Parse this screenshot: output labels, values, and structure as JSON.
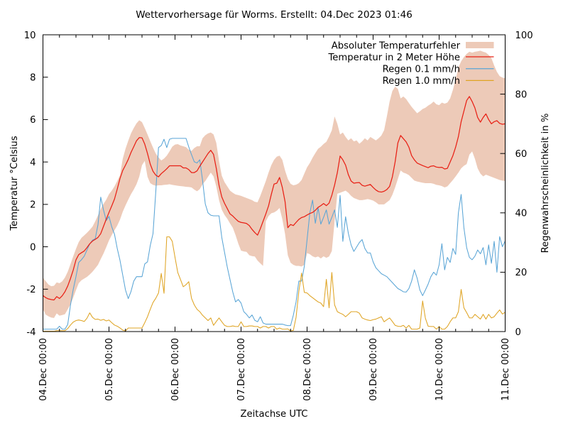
{
  "title": "Wettervorhersage für Worms. Erstellt: 04.Dec 2023 01:46",
  "axes": {
    "x_label": "Zeitachse UTC",
    "y_left_label": "Temperatur °Celsius",
    "y_right_label": "Regenwahrscheinlichkeit in %",
    "x_tick_labels": [
      "04.Dec 00:00",
      "05.Dec 00:00",
      "06.Dec 00:00",
      "07.Dec 00:00",
      "08.Dec 00:00",
      "09.Dec 00:00",
      "10.Dec 00:00",
      "11.Dec 00:00"
    ],
    "y_left_ticks": [
      10,
      8,
      6,
      4,
      2,
      0,
      -2,
      -4
    ],
    "y_right_ticks": [
      100,
      80,
      60,
      40,
      20,
      0
    ],
    "y_left_range": [
      -4,
      10
    ],
    "y_right_range": [
      0,
      100
    ],
    "x_hours": 168,
    "minor_tick_hours": 6
  },
  "legend": [
    {
      "label": "Absoluter Temperaturfehler",
      "type": "band"
    },
    {
      "label": "Temperatur in 2 Meter Höhe",
      "type": "line",
      "series": "temperature"
    },
    {
      "label": "Regen 0.1 mm/h",
      "type": "line",
      "series": "rain01"
    },
    {
      "label": "Regen 1.0 mm/h",
      "type": "line",
      "series": "rain10"
    }
  ],
  "colors": {
    "temperature": "#e82015",
    "band": "#edcab8",
    "rain01": "#5aa5d6",
    "rain10": "#dfa424",
    "axis": "#000000",
    "text": "#000000",
    "background": "#ffffff"
  },
  "chart_data": {
    "type": "line",
    "title": "Wettervorhersage für Worms. Erstellt: 04.Dec 2023 01:46",
    "xlabel": "Zeitachse UTC",
    "ylabel_left": "Temperatur °Celsius",
    "ylabel_right": "Regenwahrscheinlichkeit in %",
    "x_unit": "hours since 04.Dec 2023 00:00 UTC",
    "x": [
      0,
      1,
      2,
      3,
      4,
      5,
      6,
      7,
      8,
      9,
      10,
      11,
      12,
      13,
      14,
      15,
      16,
      17,
      18,
      19,
      20,
      21,
      22,
      23,
      24,
      25,
      26,
      27,
      28,
      29,
      30,
      31,
      32,
      33,
      34,
      35,
      36,
      37,
      38,
      39,
      40,
      41,
      42,
      43,
      44,
      45,
      46,
      47,
      48,
      49,
      50,
      51,
      52,
      53,
      54,
      55,
      56,
      57,
      58,
      59,
      60,
      61,
      62,
      63,
      64,
      65,
      66,
      67,
      68,
      69,
      70,
      71,
      72,
      73,
      74,
      75,
      76,
      77,
      78,
      79,
      80,
      81,
      82,
      83,
      84,
      85,
      86,
      87,
      88,
      89,
      90,
      91,
      92,
      93,
      94,
      95,
      96,
      97,
      98,
      99,
      100,
      101,
      102,
      103,
      104,
      105,
      106,
      107,
      108,
      109,
      110,
      111,
      112,
      113,
      114,
      115,
      116,
      117,
      118,
      119,
      120,
      121,
      122,
      123,
      124,
      125,
      126,
      127,
      128,
      129,
      130,
      131,
      132,
      133,
      134,
      135,
      136,
      137,
      138,
      139,
      140,
      141,
      142,
      143,
      144,
      145,
      146,
      147,
      148,
      149,
      150,
      151,
      152,
      153,
      154,
      155,
      156,
      157,
      158,
      159,
      160,
      161,
      162,
      163,
      164,
      165,
      166,
      167,
      168
    ],
    "ylim_left": [
      -4,
      10
    ],
    "ylim_right": [
      0,
      100
    ],
    "series": [
      {
        "name": "Absoluter Temperaturfehler (oberer Rand)",
        "axis": "left",
        "values": [
          -1.46,
          -1.62,
          -1.78,
          -1.86,
          -1.84,
          -1.68,
          -1.72,
          -1.63,
          -1.45,
          -1.18,
          -0.82,
          -0.45,
          -0.1,
          0.22,
          0.42,
          0.54,
          0.66,
          0.8,
          0.95,
          1.2,
          1.48,
          1.78,
          2.02,
          2.22,
          2.48,
          2.65,
          2.85,
          3.1,
          3.38,
          4.15,
          4.62,
          5.0,
          5.35,
          5.6,
          5.82,
          5.97,
          5.88,
          5.6,
          5.3,
          4.98,
          4.68,
          4.4,
          4.22,
          4.07,
          4.16,
          4.3,
          4.5,
          4.72,
          4.82,
          4.84,
          4.78,
          4.74,
          4.7,
          4.58,
          4.52,
          4.66,
          4.74,
          4.74,
          5.12,
          5.26,
          5.35,
          5.39,
          5.3,
          4.9,
          4.05,
          3.35,
          3.05,
          2.85,
          2.65,
          2.55,
          2.47,
          2.44,
          2.4,
          2.35,
          2.3,
          2.25,
          2.2,
          2.12,
          2.1,
          2.4,
          2.75,
          3.1,
          3.5,
          3.85,
          4.1,
          4.25,
          4.3,
          4.1,
          3.6,
          3.2,
          2.97,
          2.9,
          2.93,
          3.0,
          3.15,
          3.45,
          3.75,
          3.95,
          4.2,
          4.42,
          4.62,
          4.72,
          4.85,
          4.95,
          5.2,
          5.5,
          6.15,
          5.8,
          5.3,
          5.39,
          5.18,
          5.02,
          5.12,
          4.97,
          5.02,
          4.86,
          4.97,
          5.12,
          5.02,
          5.18,
          5.1,
          5.02,
          5.12,
          5.25,
          5.5,
          6.15,
          6.85,
          7.35,
          7.55,
          7.45,
          7.0,
          7.09,
          6.97,
          6.78,
          6.6,
          6.45,
          6.3,
          6.39,
          6.5,
          6.56,
          6.66,
          6.74,
          6.85,
          6.72,
          6.68,
          6.8,
          6.75,
          6.8,
          7.0,
          7.4,
          7.9,
          8.45,
          8.75,
          8.95,
          9.1,
          9.2,
          9.16,
          9.2,
          9.22,
          9.25,
          9.2,
          9.16,
          9.05,
          8.9,
          8.55,
          8.25,
          8.05,
          7.98,
          7.95
        ]
      },
      {
        "name": "Absoluter Temperaturfehler (unterer Rand)",
        "axis": "left",
        "values": [
          -2.95,
          -3.2,
          -3.28,
          -3.34,
          -3.36,
          -3.14,
          -3.25,
          -3.22,
          -3.18,
          -2.95,
          -2.72,
          -2.4,
          -2.05,
          -1.72,
          -1.58,
          -1.5,
          -1.42,
          -1.31,
          -1.18,
          -1.02,
          -0.85,
          -0.58,
          -0.32,
          -0.02,
          0.3,
          0.55,
          0.78,
          1.0,
          1.28,
          1.65,
          1.95,
          2.22,
          2.48,
          2.7,
          2.95,
          3.3,
          3.85,
          4.05,
          3.3,
          3.0,
          2.92,
          2.88,
          2.9,
          2.9,
          2.92,
          2.93,
          2.95,
          2.92,
          2.9,
          2.88,
          2.86,
          2.85,
          2.83,
          2.82,
          2.8,
          2.7,
          2.62,
          2.72,
          2.95,
          3.1,
          3.3,
          3.5,
          3.32,
          2.85,
          2.2,
          1.75,
          1.5,
          1.32,
          1.1,
          0.9,
          0.55,
          0.15,
          -0.18,
          -0.22,
          -0.24,
          -0.4,
          -0.44,
          -0.46,
          -0.65,
          -0.78,
          -0.9,
          1.2,
          1.45,
          1.58,
          1.62,
          1.7,
          1.83,
          1.3,
          0.6,
          -0.4,
          -0.75,
          -0.85,
          -0.9,
          -0.9,
          -0.93,
          -0.85,
          -0.3,
          -0.35,
          -0.45,
          -0.5,
          -0.46,
          -0.55,
          -0.45,
          -0.52,
          -0.46,
          -0.2,
          1.2,
          2.5,
          2.55,
          2.6,
          2.65,
          2.55,
          2.4,
          2.3,
          2.25,
          2.2,
          2.2,
          2.22,
          2.25,
          2.22,
          2.18,
          2.1,
          2.0,
          2.0,
          2.0,
          2.1,
          2.2,
          2.45,
          2.8,
          3.2,
          3.6,
          3.5,
          3.45,
          3.38,
          3.25,
          3.12,
          3.08,
          3.05,
          3.02,
          3.0,
          3.0,
          3.0,
          2.97,
          2.92,
          2.9,
          2.86,
          2.8,
          2.85,
          3.0,
          3.15,
          3.32,
          3.5,
          3.7,
          3.82,
          3.9,
          4.35,
          4.5,
          4.15,
          3.7,
          3.45,
          3.32,
          3.4,
          3.35,
          3.3,
          3.25,
          3.2,
          3.15,
          3.12,
          3.1
        ]
      },
      {
        "name": "Temperatur in 2 Meter Höhe",
        "axis": "left",
        "values": [
          -2.3,
          -2.4,
          -2.46,
          -2.49,
          -2.51,
          -2.35,
          -2.44,
          -2.31,
          -2.12,
          -1.85,
          -1.5,
          -1.1,
          -0.62,
          -0.37,
          -0.28,
          -0.2,
          -0.04,
          0.14,
          0.27,
          0.35,
          0.44,
          0.62,
          0.96,
          1.3,
          1.62,
          1.93,
          2.25,
          2.72,
          3.22,
          3.6,
          3.85,
          4.12,
          4.45,
          4.72,
          5.0,
          5.15,
          5.14,
          4.84,
          4.4,
          3.9,
          3.56,
          3.38,
          3.3,
          3.45,
          3.56,
          3.68,
          3.82,
          3.82,
          3.82,
          3.82,
          3.82,
          3.72,
          3.72,
          3.64,
          3.5,
          3.5,
          3.58,
          3.8,
          4.0,
          4.2,
          4.4,
          4.55,
          4.36,
          3.7,
          2.9,
          2.35,
          2.05,
          1.8,
          1.55,
          1.45,
          1.32,
          1.2,
          1.15,
          1.13,
          1.1,
          1.0,
          0.82,
          0.67,
          0.55,
          0.85,
          1.2,
          1.55,
          1.93,
          2.47,
          2.96,
          3.0,
          3.27,
          2.8,
          2.13,
          0.9,
          1.05,
          1.0,
          1.15,
          1.29,
          1.38,
          1.42,
          1.5,
          1.57,
          1.62,
          1.72,
          1.86,
          1.94,
          2.04,
          1.94,
          2.06,
          2.43,
          2.91,
          3.5,
          4.28,
          4.1,
          3.85,
          3.4,
          3.1,
          3.0,
          3.02,
          3.03,
          2.9,
          2.86,
          2.9,
          2.94,
          2.8,
          2.68,
          2.6,
          2.58,
          2.62,
          2.7,
          2.85,
          3.3,
          4.0,
          4.9,
          5.25,
          5.1,
          4.95,
          4.7,
          4.3,
          4.1,
          3.95,
          3.89,
          3.83,
          3.78,
          3.73,
          3.8,
          3.82,
          3.76,
          3.74,
          3.75,
          3.67,
          3.7,
          4.0,
          4.3,
          4.7,
          5.2,
          5.9,
          6.4,
          6.9,
          7.09,
          6.85,
          6.55,
          6.1,
          5.88,
          6.1,
          6.27,
          6.0,
          5.8,
          5.9,
          5.95,
          5.82,
          5.78,
          5.8
        ]
      },
      {
        "name": "Regen 0.1 mm/h",
        "axis": "right",
        "values": [
          0.8,
          0.8,
          0.8,
          0.8,
          0.8,
          0.8,
          1.8,
          0.8,
          0.8,
          2.4,
          8.9,
          14.2,
          18.5,
          23.3,
          24.2,
          25.4,
          27.5,
          29.5,
          30.8,
          31.3,
          36.0,
          45.3,
          41.0,
          37.4,
          38.8,
          35.3,
          32.8,
          28.0,
          24.0,
          19.0,
          14.0,
          11.1,
          13.5,
          17.0,
          18.5,
          18.5,
          18.5,
          22.8,
          23.5,
          29.0,
          33.0,
          47.0,
          62.0,
          62.7,
          64.8,
          62.0,
          64.8,
          65.1,
          65.1,
          65.1,
          65.1,
          65.1,
          65.1,
          62.2,
          59.6,
          57.2,
          56.8,
          57.9,
          51.0,
          43.0,
          40.0,
          39.2,
          39.0,
          39.0,
          39.0,
          31.7,
          26.7,
          21.7,
          17.5,
          13.3,
          10.0,
          10.8,
          9.6,
          6.7,
          5.8,
          4.6,
          5.6,
          3.8,
          3.3,
          5.0,
          2.9,
          2.5,
          2.5,
          2.5,
          2.5,
          2.5,
          2.5,
          2.5,
          2.2,
          2.0,
          2.0,
          5.5,
          10.0,
          17.0,
          17.0,
          22.0,
          31.0,
          40.0,
          44.3,
          36.5,
          41.7,
          36.2,
          38.5,
          41.0,
          36.2,
          38.5,
          41.0,
          35.1,
          45.9,
          30.4,
          38.7,
          33.1,
          29.2,
          27.0,
          28.5,
          30.0,
          31.0,
          28.0,
          26.5,
          26.5,
          23.5,
          21.5,
          20.5,
          19.5,
          19.0,
          18.5,
          17.5,
          16.5,
          15.5,
          14.5,
          14.0,
          13.4,
          13.3,
          14.5,
          17.0,
          20.8,
          18.0,
          14.0,
          12.1,
          14.0,
          16.0,
          18.5,
          20.0,
          19.0,
          22.5,
          29.6,
          20.8,
          25.0,
          23.3,
          28.0,
          26.0,
          40.0,
          46.2,
          35.0,
          28.3,
          25.0,
          24.2,
          25.4,
          27.5,
          26.2,
          28.3,
          22.5,
          29.2,
          23.0,
          30.4,
          20.0,
          32.0,
          28.6,
          30.5
        ]
      },
      {
        "name": "Regen 1.0 mm/h",
        "axis": "right",
        "values": [
          0.1,
          0.1,
          0.1,
          0.1,
          0.1,
          0.3,
          0.3,
          0.3,
          0.3,
          1.0,
          2.2,
          3.2,
          3.7,
          3.9,
          3.7,
          3.4,
          4.5,
          6.3,
          4.8,
          4.1,
          4.2,
          3.8,
          4.1,
          3.6,
          3.9,
          3.0,
          2.2,
          1.8,
          1.2,
          0.5,
          0.2,
          1.2,
          1.2,
          1.2,
          1.2,
          1.2,
          1.2,
          3.0,
          5.0,
          7.5,
          9.8,
          11.2,
          13.0,
          19.6,
          12.9,
          31.9,
          31.9,
          30.4,
          25.0,
          19.9,
          17.5,
          15.1,
          15.8,
          16.8,
          11.2,
          9.0,
          7.5,
          6.7,
          5.5,
          4.6,
          3.7,
          4.6,
          2.1,
          3.4,
          4.6,
          3.3,
          2.1,
          1.7,
          1.7,
          1.9,
          1.7,
          1.7,
          3.3,
          1.7,
          1.7,
          1.9,
          1.9,
          1.7,
          1.7,
          1.2,
          1.7,
          1.7,
          1.2,
          1.7,
          1.7,
          0.8,
          1.2,
          0.8,
          0.8,
          0.9,
          0.2,
          0.4,
          4.8,
          13.5,
          19.7,
          13.2,
          13.0,
          12.1,
          11.4,
          10.7,
          10.0,
          9.6,
          8.4,
          17.6,
          8.0,
          19.9,
          9.0,
          6.7,
          6.2,
          5.8,
          5.0,
          5.8,
          6.7,
          6.7,
          6.7,
          6.2,
          4.6,
          4.2,
          3.9,
          3.7,
          4.0,
          4.2,
          4.6,
          5.0,
          3.3,
          4.0,
          4.6,
          3.4,
          2.1,
          1.8,
          1.7,
          2.1,
          1.2,
          2.1,
          0.8,
          0.8,
          0.8,
          1.2,
          10.3,
          4.5,
          1.8,
          1.7,
          1.7,
          0.8,
          1.7,
          0.8,
          0.8,
          1.7,
          3.3,
          4.6,
          4.6,
          6.7,
          14.2,
          8.0,
          6.4,
          4.6,
          4.6,
          5.8,
          5.0,
          4.2,
          5.8,
          4.2,
          5.8,
          4.6,
          5.0,
          6.2,
          7.3,
          5.9,
          6.5
        ]
      }
    ],
    "legend_position": "top-right-inside",
    "grid": false
  }
}
